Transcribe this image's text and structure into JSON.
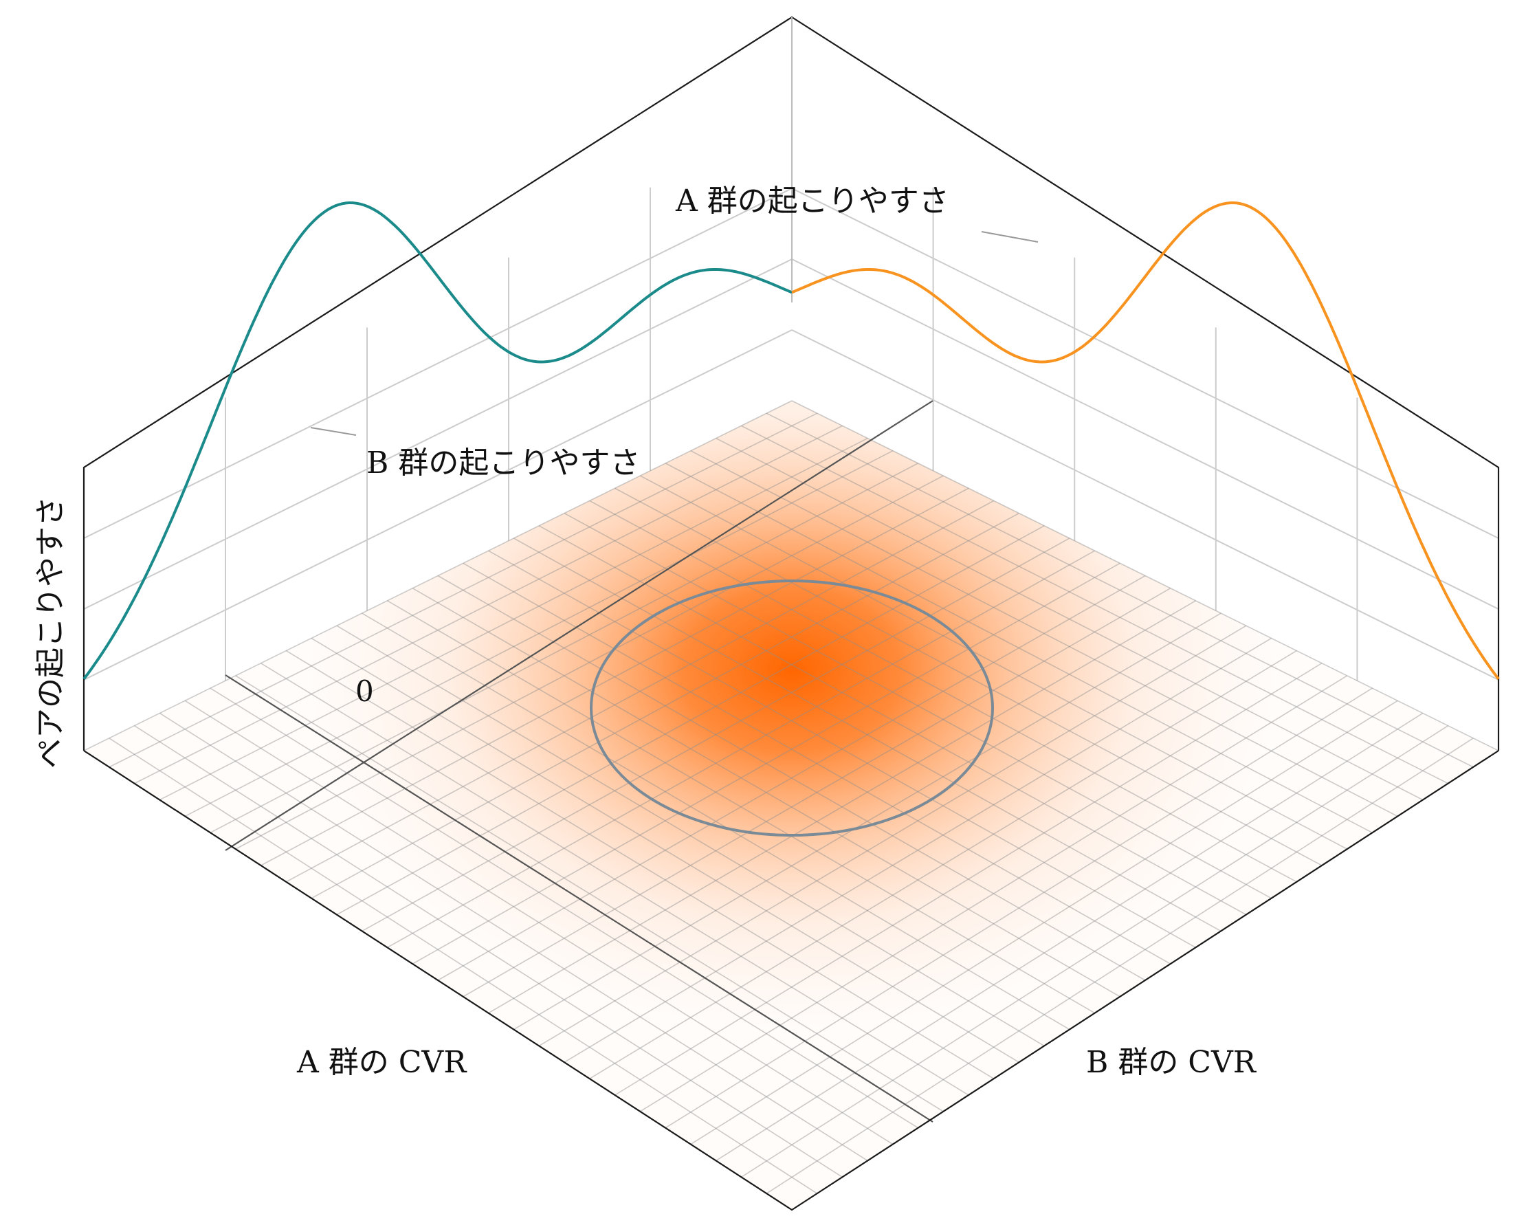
{
  "labels": {
    "a_marginal": "A 群の起こりやすさ",
    "b_marginal": "B 群の起こりやすさ",
    "vertical_axis": "ペアの起こりやすさ",
    "a_axis": "A 群の CVR",
    "b_axis": "B 群の CVR",
    "zero": "0"
  },
  "colors": {
    "a_curve": "#f7931e",
    "b_curve": "#1b8a8a",
    "peak": "#ff6600",
    "contour": "#7a8a96",
    "frame": "#222222",
    "grid": "#c8c8c8"
  }
}
